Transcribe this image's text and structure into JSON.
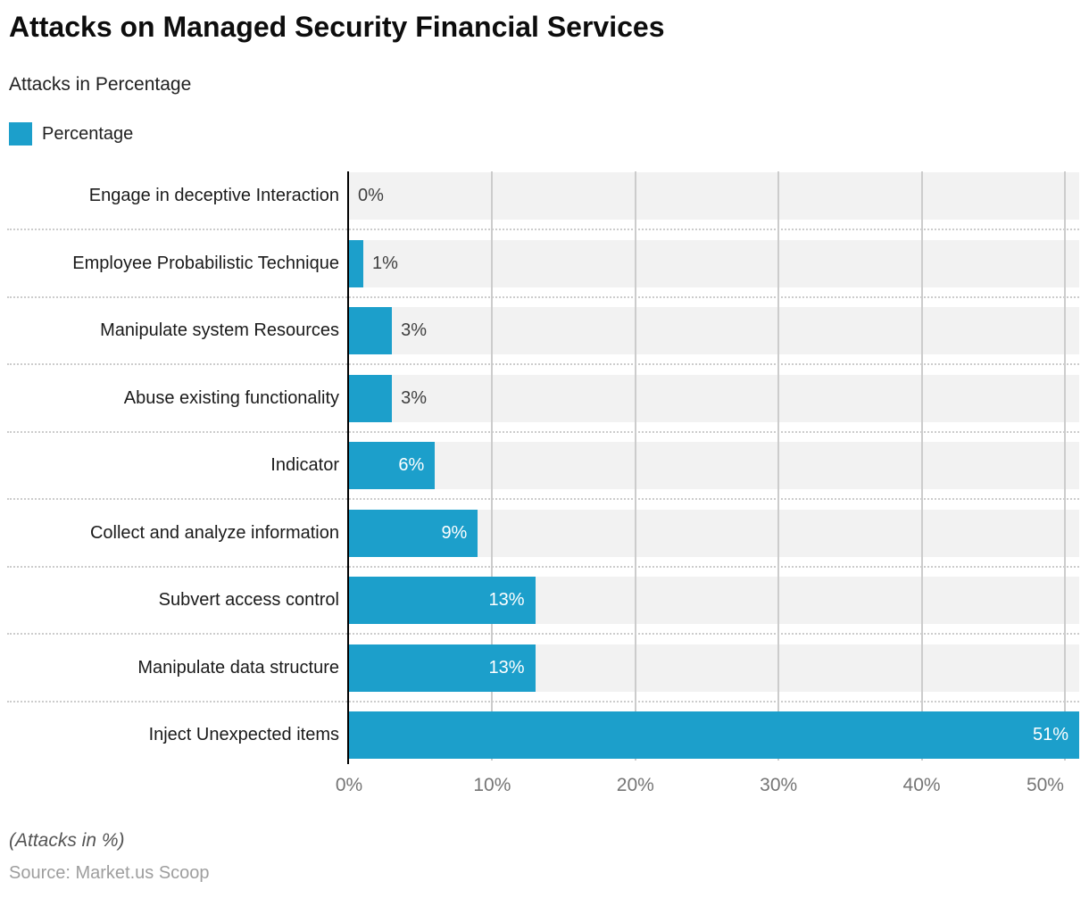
{
  "header": {
    "title": "Attacks on Managed Security Financial Services",
    "subtitle": "Attacks in Percentage"
  },
  "legend": {
    "label": "Percentage",
    "color": "#1C9FCB"
  },
  "footer": {
    "note": "(Attacks in %)",
    "source": "Source: Market.us Scoop"
  },
  "chart_data": {
    "type": "bar",
    "orientation": "horizontal",
    "title": "Attacks on Managed Security Financial Services",
    "subtitle": "Attacks in Percentage",
    "legend": [
      "Percentage"
    ],
    "categories": [
      "Engage in deceptive Interaction",
      "Employee Probabilistic Technique",
      "Manipulate system Resources",
      "Abuse existing functionality",
      "Indicator",
      "Collect and analyze information",
      "Subvert access control",
      "Manipulate data structure",
      "Inject Unexpected items"
    ],
    "values": [
      0,
      1,
      3,
      3,
      6,
      9,
      13,
      13,
      51
    ],
    "value_labels": [
      "0%",
      "1%",
      "3%",
      "3%",
      "6%",
      "9%",
      "13%",
      "13%",
      "51%"
    ],
    "xticks": [
      "0%",
      "10%",
      "20%",
      "30%",
      "40%",
      "50%"
    ],
    "xtick_values": [
      0,
      10,
      20,
      30,
      40,
      50
    ],
    "xlim": [
      0,
      51
    ],
    "xlabel": "",
    "ylabel": "",
    "grid": "vertical-solid, row-separators-dotted",
    "legend_position": "top-left",
    "bar_color": "#1C9FCB",
    "track_color": "#F2F2F2",
    "inside_label_threshold": 6
  }
}
